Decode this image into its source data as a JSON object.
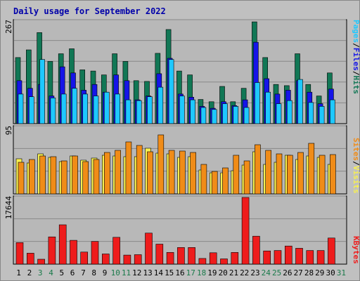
{
  "colors": {
    "background": "#c0c0c0",
    "plot_background": "#b8b8b8",
    "grid": "#888888",
    "hits": "#117755",
    "files": "#1515e8",
    "pages": "#1ec8ff",
    "visits": "#f8f050",
    "sites": "#f08c18",
    "kbytes": "#ee1c1c",
    "title_color": "#0000aa",
    "day_label_default": "#000000",
    "day_label_weekend": "#1a7a4a"
  },
  "chart_data": [
    {
      "type": "bar",
      "title": "Daily usage for September 2022",
      "panel": "top",
      "ymax_label": "267",
      "ylim": [
        0,
        267
      ],
      "grid": true,
      "legend": [
        {
          "name": "Pages",
          "color_key": "pages"
        },
        {
          "name": "/",
          "color_key": "separator"
        },
        {
          "name": "Files",
          "color_key": "files"
        },
        {
          "name": "/",
          "color_key": "separator"
        },
        {
          "name": "Hits",
          "color_key": "hits"
        }
      ],
      "categories": [
        "1",
        "2",
        "3",
        "4",
        "5",
        "6",
        "7",
        "8",
        "9",
        "10",
        "11",
        "12",
        "13",
        "14",
        "15",
        "16",
        "17",
        "18",
        "19",
        "20",
        "21",
        "22",
        "23",
        "24",
        "25",
        "26",
        "27",
        "28",
        "29",
        "30",
        "31"
      ],
      "series": [
        {
          "name": "Hits",
          "color_key": "hits",
          "values": [
            172,
            192,
            237,
            162,
            182,
            195,
            140,
            137,
            127,
            182,
            162,
            112,
            110,
            183,
            245,
            137,
            127,
            63,
            57,
            97,
            57,
            92,
            265,
            172,
            102,
            99,
            182,
            102,
            72,
            132,
            0
          ]
        },
        {
          "name": "Files",
          "color_key": "files",
          "values": [
            112,
            92,
            102,
            72,
            148,
            132,
            87,
            102,
            82,
            127,
            112,
            62,
            72,
            130,
            170,
            77,
            69,
            45,
            40,
            57,
            47,
            62,
            212,
            117,
            77,
            87,
            112,
            82,
            52,
            90,
            0
          ]
        },
        {
          "name": "Pages",
          "color_key": "pages",
          "values": [
            77,
            70,
            167,
            67,
            77,
            92,
            77,
            72,
            82,
            77,
            62,
            60,
            70,
            95,
            167,
            72,
            62,
            42,
            37,
            52,
            45,
            42,
            107,
            82,
            52,
            60,
            115,
            55,
            45,
            62,
            0
          ]
        }
      ]
    },
    {
      "type": "bar",
      "panel": "middle",
      "ymax_label": "95",
      "ylim": [
        0,
        95
      ],
      "grid": true,
      "legend": [
        {
          "name": "Sites",
          "color_key": "sites"
        },
        {
          "name": "/",
          "color_key": "separator"
        },
        {
          "name": "Visits",
          "color_key": "visits"
        }
      ],
      "categories": [
        "1",
        "2",
        "3",
        "4",
        "5",
        "6",
        "7",
        "8",
        "9",
        "10",
        "11",
        "12",
        "13",
        "14",
        "15",
        "16",
        "17",
        "18",
        "19",
        "20",
        "21",
        "22",
        "23",
        "24",
        "25",
        "26",
        "27",
        "28",
        "29",
        "30",
        "31"
      ],
      "series": [
        {
          "name": "Visits",
          "color_key": "visits",
          "values": [
            50,
            44,
            57,
            52,
            46,
            54,
            48,
            51,
            55,
            54,
            53,
            53,
            65,
            58,
            57,
            52,
            53,
            34,
            30,
            30,
            33,
            41,
            60,
            42,
            45,
            55,
            49,
            54,
            52,
            42,
            0
          ]
        },
        {
          "name": "Sites",
          "color_key": "sites",
          "values": [
            45,
            49,
            54,
            53,
            47,
            54,
            46,
            49,
            59,
            62,
            74,
            69,
            60,
            84,
            62,
            61,
            59,
            42,
            32,
            37,
            55,
            47,
            70,
            62,
            57,
            55,
            59,
            72,
            55,
            56,
            0
          ]
        }
      ]
    },
    {
      "type": "bar",
      "panel": "bottom",
      "ymax_label": "17644",
      "ylim": [
        0,
        17644
      ],
      "grid": true,
      "legend": [
        {
          "name": "KBytes",
          "color_key": "kbytes"
        }
      ],
      "categories": [
        "1",
        "2",
        "3",
        "4",
        "5",
        "6",
        "7",
        "8",
        "9",
        "10",
        "11",
        "12",
        "13",
        "14",
        "15",
        "16",
        "17",
        "18",
        "19",
        "20",
        "21",
        "22",
        "23",
        "24",
        "25",
        "26",
        "27",
        "28",
        "29",
        "30",
        "31"
      ],
      "series": [
        {
          "name": "KBytes",
          "color_key": "kbytes",
          "values": [
            5700,
            2900,
            1300,
            7200,
            10400,
            6300,
            3200,
            6000,
            2700,
            7100,
            2400,
            2500,
            8200,
            5300,
            3100,
            4400,
            4400,
            1500,
            3000,
            1400,
            3100,
            17644,
            7400,
            3500,
            3600,
            4800,
            4200,
            3600,
            3600,
            6900,
            0
          ]
        }
      ]
    }
  ]
}
